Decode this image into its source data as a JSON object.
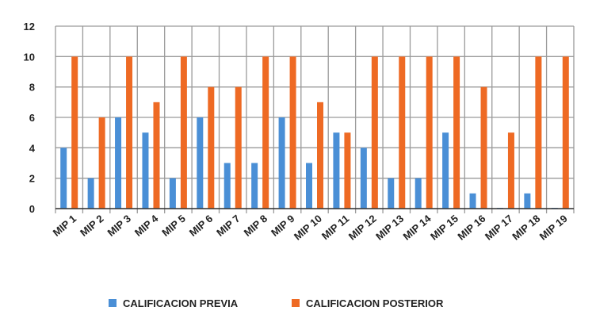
{
  "chart_data": {
    "type": "bar",
    "title": "",
    "xlabel": "",
    "ylabel": "",
    "ylim": [
      0,
      12
    ],
    "yticks": [
      0,
      2,
      4,
      6,
      8,
      10,
      12
    ],
    "grid": true,
    "legend_position": "bottom",
    "categories": [
      "MIP 1",
      "MIP 2",
      "MIP 3",
      "MIP 4",
      "MIP 5",
      "MIP 6",
      "MIP 7",
      "MIP 8",
      "MIP 9",
      "MIP 10",
      "MIP 11",
      "MIP 12",
      "MIP 13",
      "MIP 14",
      "MIP 15",
      "MIP 16",
      "MIP 17",
      "MIP 18",
      "MIP 19"
    ],
    "series": [
      {
        "name": "CALIFICACION PREVIA",
        "color": "#4a8fd6",
        "values": [
          4,
          2,
          6,
          5,
          2,
          6,
          3,
          3,
          6,
          3,
          5,
          4,
          2,
          2,
          5,
          1,
          0.05,
          1,
          0.05
        ]
      },
      {
        "name": "CALIFICACION POSTERIOR",
        "color": "#ee6a24",
        "values": [
          10,
          6,
          10,
          7,
          10,
          8,
          8,
          10,
          10,
          7,
          5,
          10,
          10,
          10,
          10,
          8,
          5,
          10,
          10
        ]
      }
    ]
  }
}
